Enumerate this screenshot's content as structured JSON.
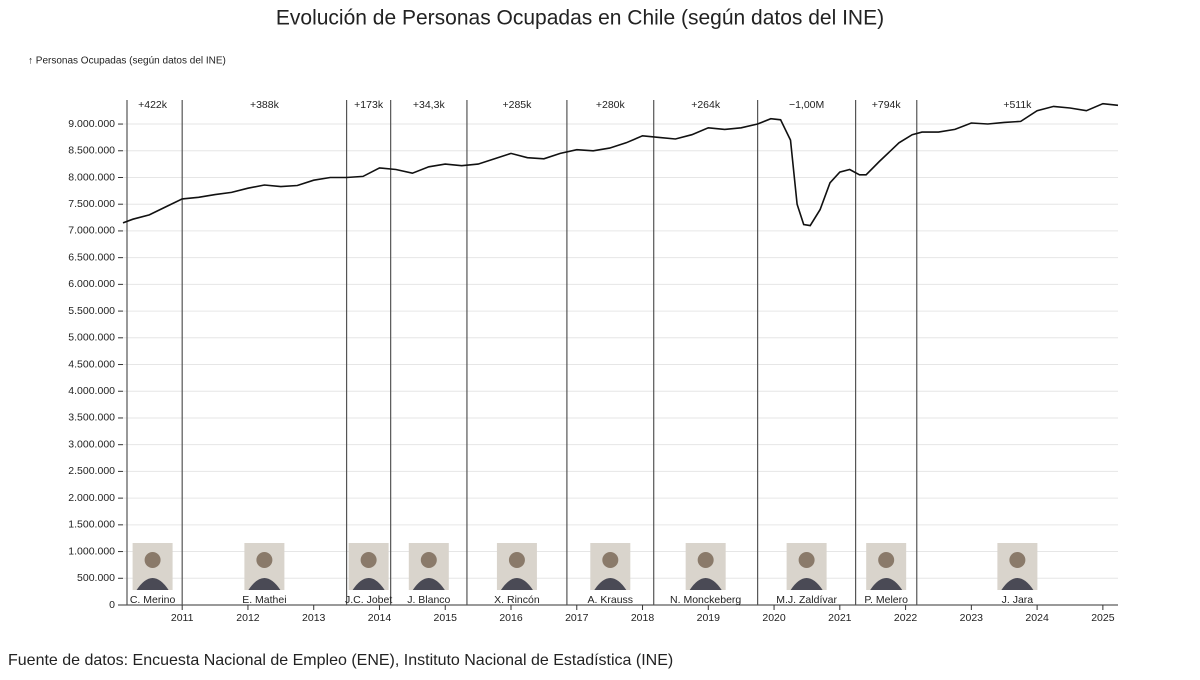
{
  "chart_data": {
    "type": "line",
    "title": "Evolución de Personas Ocupadas en Chile (según datos del INE)",
    "y_label": "↑ Personas Ocupadas (según datos del INE)",
    "source": "Fuente de datos: Encuesta Nacional de Empleo (ENE), Instituto Nacional de Estadística (INE)",
    "xlim": [
      2010.1,
      2025.23
    ],
    "ylim": [
      0,
      9450000
    ],
    "xticks": [
      2011,
      2012,
      2013,
      2014,
      2015,
      2016,
      2017,
      2018,
      2019,
      2020,
      2021,
      2022,
      2023,
      2024,
      2025
    ],
    "yticks": [
      {
        "value": 0,
        "label": "0"
      },
      {
        "value": 500000,
        "label": "500.000"
      },
      {
        "value": 1000000,
        "label": "1.000.000"
      },
      {
        "value": 1500000,
        "label": "1.500.000"
      },
      {
        "value": 2000000,
        "label": "2.000.000"
      },
      {
        "value": 2500000,
        "label": "2.500.000"
      },
      {
        "value": 3000000,
        "label": "3.000.000"
      },
      {
        "value": 3500000,
        "label": "3.500.000"
      },
      {
        "value": 4000000,
        "label": "4.000.000"
      },
      {
        "value": 4500000,
        "label": "4.500.000"
      },
      {
        "value": 5000000,
        "label": "5.000.000"
      },
      {
        "value": 5500000,
        "label": "5.500.000"
      },
      {
        "value": 6000000,
        "label": "6.000.000"
      },
      {
        "value": 6500000,
        "label": "6.500.000"
      },
      {
        "value": 7000000,
        "label": "7.000.000"
      },
      {
        "value": 7500000,
        "label": "7.500.000"
      },
      {
        "value": 8000000,
        "label": "8.000.000"
      },
      {
        "value": 8500000,
        "label": "8.500.000"
      },
      {
        "value": 9000000,
        "label": "9.000.000"
      }
    ],
    "grid": true,
    "color": "#111111",
    "x": [
      2010.1,
      2010.25,
      2010.5,
      2010.75,
      2011.0,
      2011.25,
      2011.5,
      2011.75,
      2012.0,
      2012.25,
      2012.5,
      2012.75,
      2013.0,
      2013.25,
      2013.5,
      2013.75,
      2014.0,
      2014.25,
      2014.5,
      2014.75,
      2015.0,
      2015.25,
      2015.5,
      2015.75,
      2016.0,
      2016.25,
      2016.5,
      2016.75,
      2017.0,
      2017.25,
      2017.5,
      2017.75,
      2018.0,
      2018.25,
      2018.5,
      2018.75,
      2019.0,
      2019.25,
      2019.5,
      2019.75,
      2019.95,
      2020.1,
      2020.25,
      2020.35,
      2020.45,
      2020.55,
      2020.7,
      2020.85,
      2021.0,
      2021.15,
      2021.3,
      2021.4,
      2021.6,
      2021.9,
      2022.1,
      2022.25,
      2022.5,
      2022.75,
      2023.0,
      2023.25,
      2023.5,
      2023.75,
      2024.0,
      2024.25,
      2024.5,
      2024.75,
      2025.0,
      2025.23
    ],
    "values": [
      7150000,
      7220000,
      7300000,
      7450000,
      7600000,
      7630000,
      7680000,
      7720000,
      7800000,
      7860000,
      7830000,
      7850000,
      7950000,
      8000000,
      8000000,
      8020000,
      8180000,
      8150000,
      8080000,
      8200000,
      8250000,
      8220000,
      8250000,
      8350000,
      8450000,
      8370000,
      8350000,
      8450000,
      8520000,
      8500000,
      8550000,
      8650000,
      8780000,
      8750000,
      8720000,
      8800000,
      8930000,
      8900000,
      8930000,
      9000000,
      9100000,
      9080000,
      8700000,
      7500000,
      7120000,
      7100000,
      7400000,
      7900000,
      8100000,
      8150000,
      8050000,
      8050000,
      8300000,
      8650000,
      8800000,
      8850000,
      8850000,
      8900000,
      9020000,
      9000000,
      9030000,
      9050000,
      9250000,
      9330000,
      9300000,
      9250000,
      9380000,
      9350000
    ],
    "boundaries": [
      2011.0,
      2013.5,
      2014.17,
      2015.33,
      2016.85,
      2018.17,
      2019.75,
      2021.24,
      2022.17
    ],
    "periods": [
      {
        "name": "C. Merino",
        "change": "+422k"
      },
      {
        "name": "E. Mathei",
        "change": "+388k"
      },
      {
        "name": "J.C. Jobet",
        "change": "+173k"
      },
      {
        "name": "J. Blanco",
        "change": "+34,3k"
      },
      {
        "name": "X. Rincón",
        "change": "+285k"
      },
      {
        "name": "A. Krauss",
        "change": "+280k"
      },
      {
        "name": "N. Monckeberg",
        "change": "+264k"
      },
      {
        "name": "M.J. Zaldívar",
        "change": "−1,00M"
      },
      {
        "name": "P. Melero",
        "change": "+794k"
      },
      {
        "name": "J. Jara",
        "change": "+511k"
      }
    ]
  }
}
